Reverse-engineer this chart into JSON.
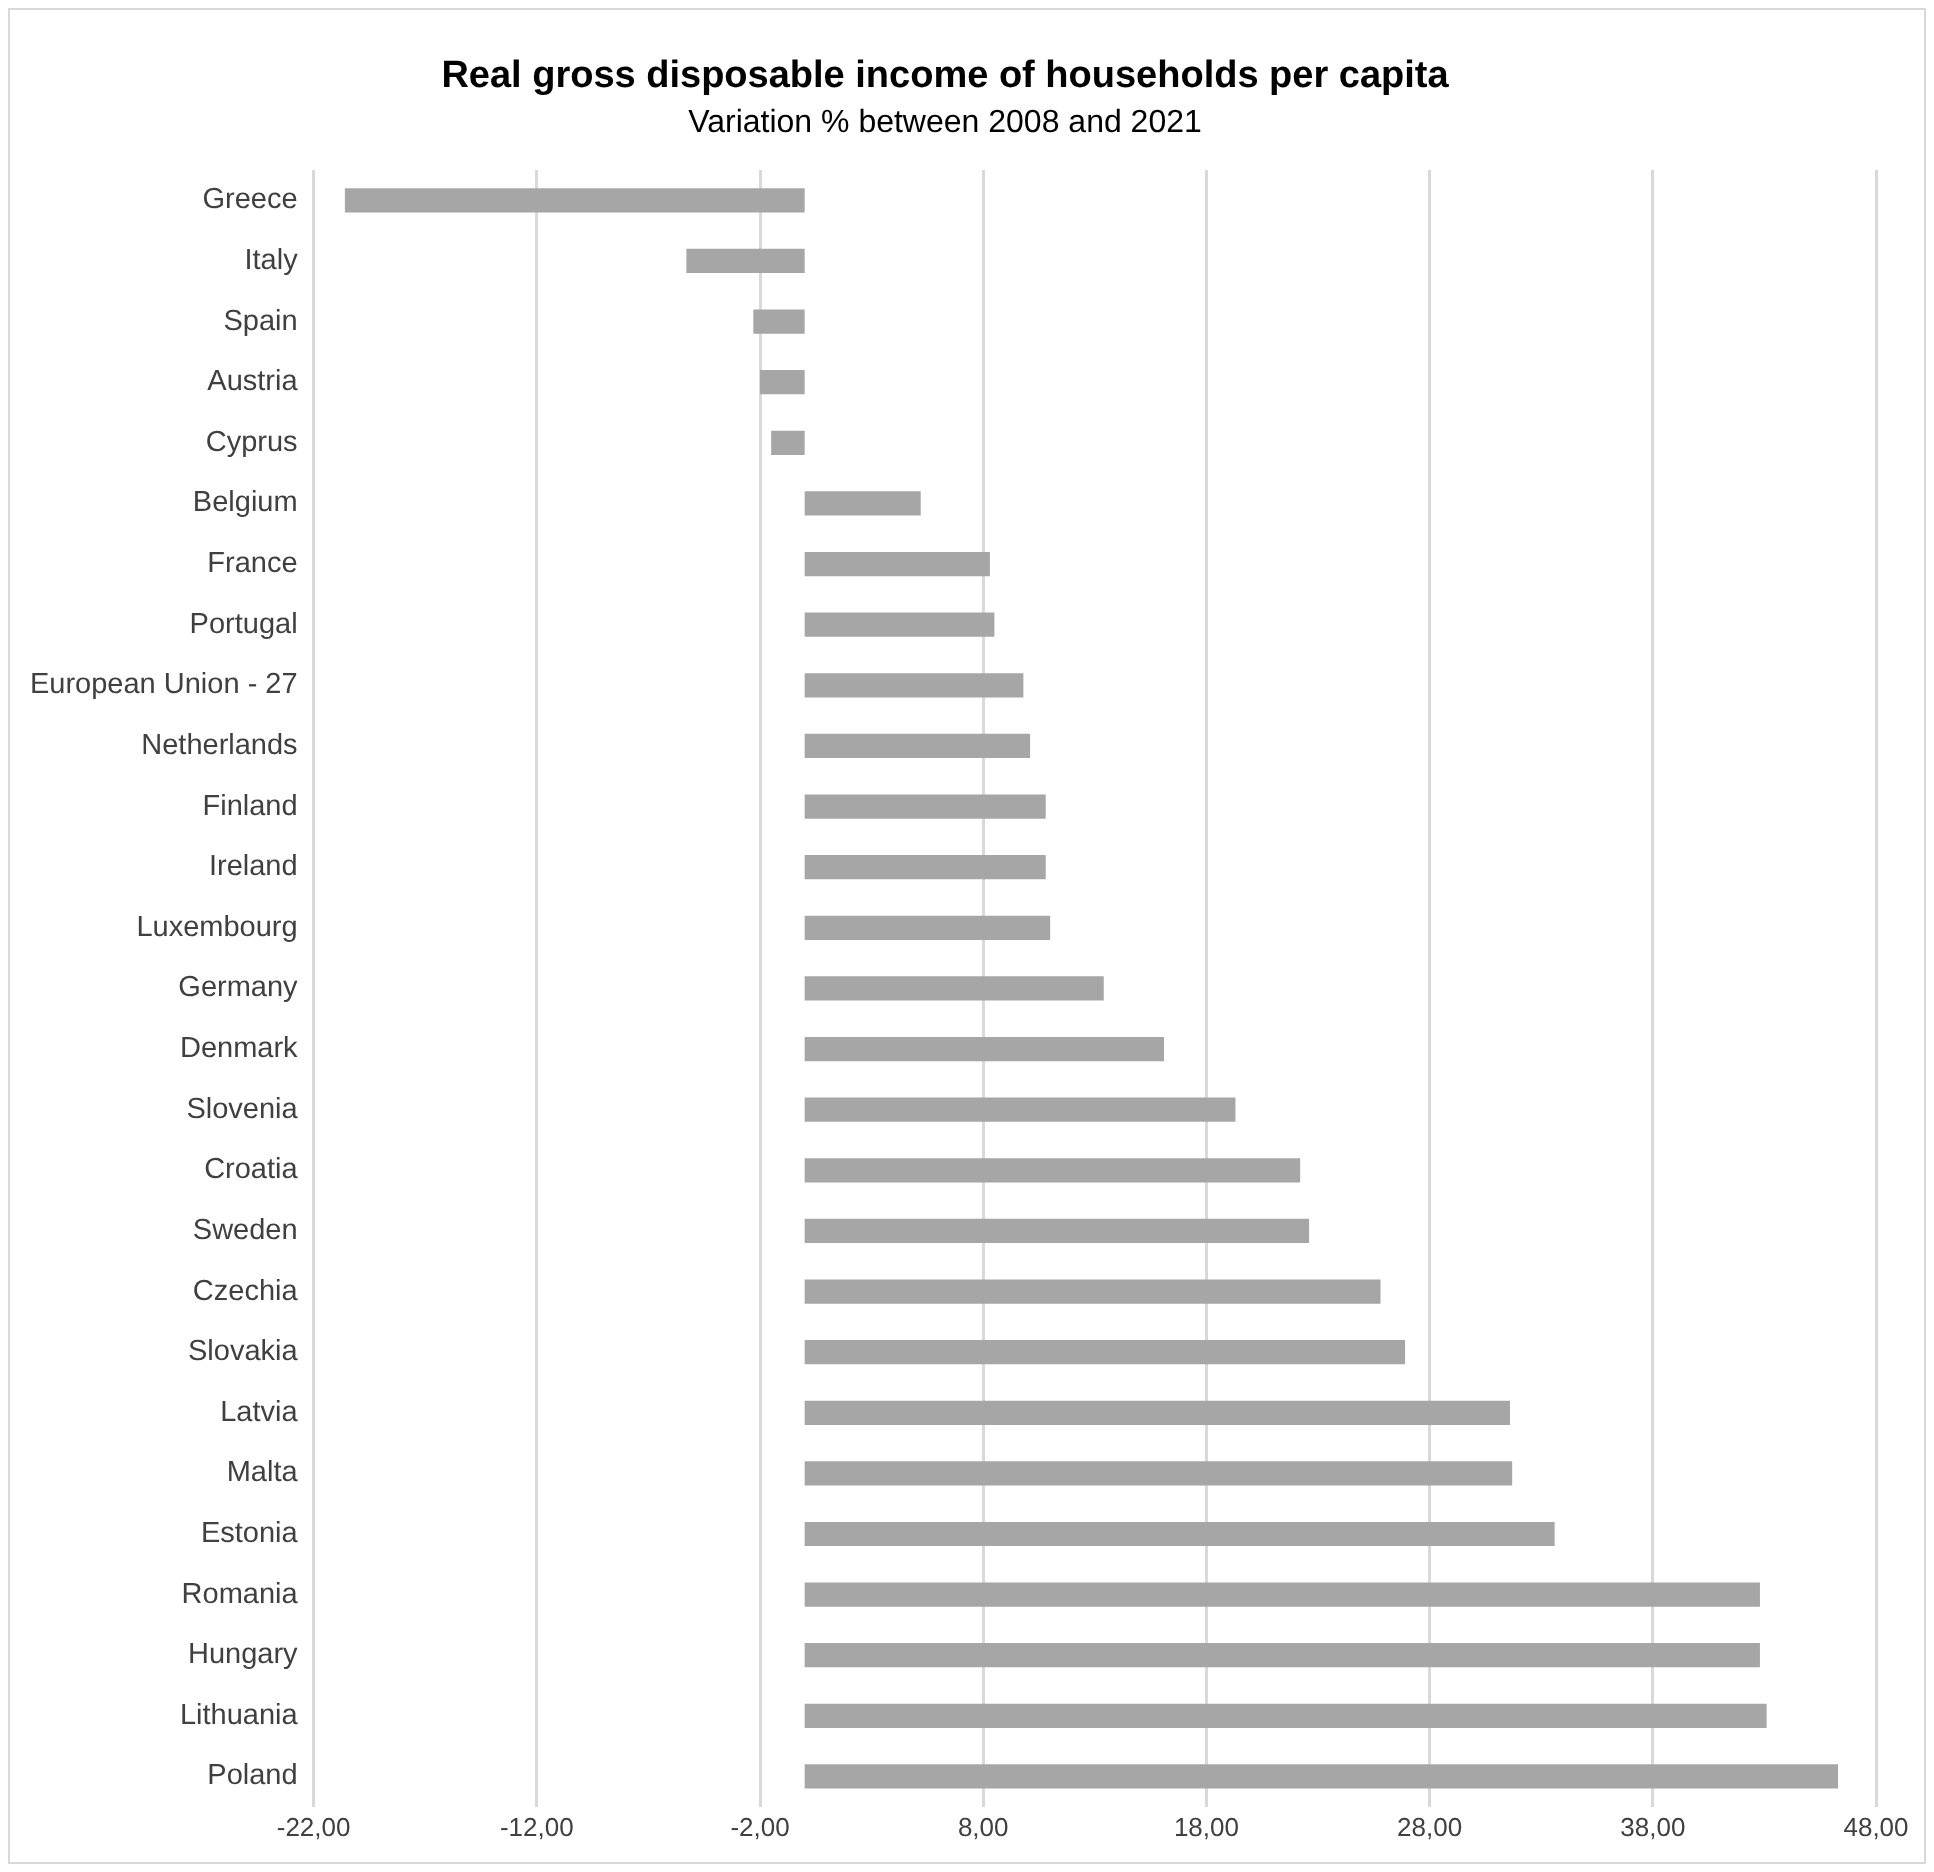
{
  "chart_data": {
    "type": "bar",
    "orientation": "horizontal",
    "title": "Real gross disposable income of households per capita",
    "subtitle": "Variation % between 2008 and 2021",
    "categories": [
      "Greece",
      "Italy",
      "Spain",
      "Austria",
      "Cyprus",
      "Belgium",
      "France",
      "Portugal",
      "European Union - 27",
      "Netherlands",
      "Finland",
      "Ireland",
      "Luxembourg",
      "Germany",
      "Denmark",
      "Slovenia",
      "Croatia",
      "Sweden",
      "Czechia",
      "Slovakia",
      "Latvia",
      "Malta",
      "Estonia",
      "Romania",
      "Hungary",
      "Lithuania",
      "Poland"
    ],
    "values": [
      -20.6,
      -5.3,
      -2.3,
      -2.0,
      -1.5,
      5.2,
      8.3,
      8.5,
      9.8,
      10.1,
      10.8,
      10.8,
      11.0,
      13.4,
      16.1,
      19.3,
      22.2,
      22.6,
      25.8,
      26.9,
      31.6,
      31.7,
      33.6,
      42.8,
      42.8,
      43.1,
      46.3
    ],
    "color": "#a6a6a6",
    "xlim": [
      -22,
      48
    ],
    "xticks": [
      {
        "value": -22,
        "label": "-22,00"
      },
      {
        "value": -12,
        "label": "-12,00"
      },
      {
        "value": -2,
        "label": "-2,00"
      },
      {
        "value": 8,
        "label": "8,00"
      },
      {
        "value": 18,
        "label": "18,00"
      },
      {
        "value": 28,
        "label": "28,00"
      },
      {
        "value": 38,
        "label": "38,00"
      },
      {
        "value": 48,
        "label": "48,00"
      }
    ],
    "grid": "x",
    "legend": false
  }
}
